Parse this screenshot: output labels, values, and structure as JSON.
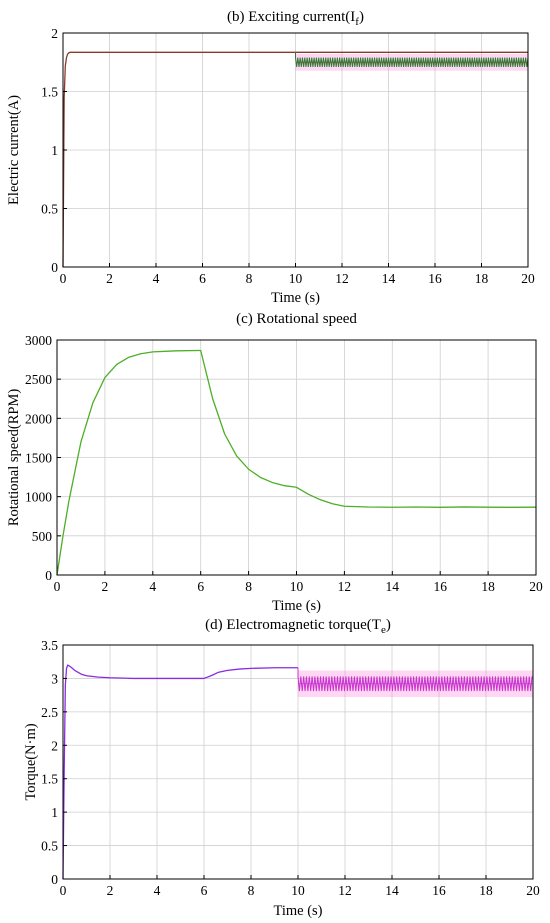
{
  "figure": {
    "background": "#ffffff",
    "grid_color": "#cfcfcf",
    "axis_color": "#000000"
  },
  "chart_data": [
    {
      "id": "exciting-current",
      "type": "line",
      "title": "(b) Exciting current(I",
      "title_sub": "f",
      "title_tail": ")",
      "xlabel": "Time (s)",
      "ylabel": "Electric current(A)",
      "xlim": [
        0,
        20
      ],
      "ylim": [
        0,
        2
      ],
      "xticks": [
        0,
        2,
        4,
        6,
        8,
        10,
        12,
        14,
        16,
        18,
        20
      ],
      "yticks": [
        0,
        0.5,
        1,
        1.5,
        2
      ],
      "ytick_labels": [
        "0",
        "0.5",
        "1",
        "1.5",
        "2"
      ],
      "grid": true,
      "series": [
        {
          "color": "#8b3a2a",
          "ripple_color": "#2e7d32",
          "ripple_band_color": "#ff8ce0",
          "x": [
            0,
            0.05,
            0.1,
            0.15,
            0.2,
            0.25,
            0.3,
            0.4,
            0.6,
            10,
            20
          ],
          "y": [
            0,
            1.45,
            1.72,
            1.79,
            1.82,
            1.83,
            1.835,
            1.835,
            1.835,
            1.835,
            1.835
          ],
          "ripple": {
            "from": 10,
            "to": 20,
            "mean": 1.75,
            "amplitude": 0.04,
            "period": 0.1
          }
        }
      ]
    },
    {
      "id": "rotational-speed",
      "type": "line",
      "title": "(c) Rotational speed",
      "xlabel": "Time (s)",
      "ylabel": "Rotational speed(RPM)",
      "xlim": [
        0,
        20
      ],
      "ylim": [
        0,
        3000
      ],
      "xticks": [
        0,
        2,
        4,
        6,
        8,
        10,
        12,
        14,
        16,
        18,
        20
      ],
      "yticks": [
        0,
        500,
        1000,
        1500,
        2000,
        2500,
        3000
      ],
      "ytick_labels": [
        "0",
        "500",
        "1000",
        "1500",
        "2000",
        "2500",
        "3000"
      ],
      "grid": true,
      "series": [
        {
          "color": "#4caf26",
          "x": [
            0,
            0.25,
            0.5,
            1,
            1.5,
            2,
            2.5,
            3,
            3.5,
            4,
            5,
            5.9,
            6,
            6.5,
            7,
            7.5,
            8,
            8.5,
            9,
            9.5,
            10,
            10.5,
            11,
            11.5,
            12,
            13,
            14,
            15,
            16,
            17,
            18,
            19,
            20
          ],
          "y": [
            0,
            500,
            950,
            1700,
            2200,
            2520,
            2690,
            2780,
            2825,
            2848,
            2862,
            2866,
            2866,
            2250,
            1800,
            1520,
            1350,
            1245,
            1180,
            1140,
            1120,
            1030,
            960,
            910,
            878,
            868,
            865,
            868,
            864,
            869,
            866,
            864,
            866
          ]
        }
      ]
    },
    {
      "id": "electromagnetic-torque",
      "type": "line",
      "title": "(d) Electromagnetic torque(T",
      "title_sub": "e",
      "title_tail": ")",
      "xlabel": "Time (s)",
      "ylabel": "Torque(N·m)",
      "xlim": [
        0,
        20
      ],
      "ylim": [
        0,
        3.5
      ],
      "xticks": [
        0,
        2,
        4,
        6,
        8,
        10,
        12,
        14,
        16,
        18,
        20
      ],
      "yticks": [
        0,
        0.5,
        1,
        1.5,
        2,
        2.5,
        3,
        3.5
      ],
      "ytick_labels": [
        "0",
        "0.5",
        "1",
        "1.5",
        "2",
        "2.5",
        "3",
        "3.5"
      ],
      "grid": true,
      "series": [
        {
          "color": "#8a2be2",
          "ripple_color": "#cc33cc",
          "ripple_band_color": "#ff8ce0",
          "x": [
            0,
            0.05,
            0.1,
            0.15,
            0.2,
            0.3,
            0.5,
            0.8,
            1,
            1.5,
            2,
            3,
            4,
            5,
            6,
            6.3,
            6.6,
            7,
            7.5,
            8,
            9,
            10
          ],
          "y": [
            0,
            1.6,
            2.9,
            3.15,
            3.2,
            3.18,
            3.12,
            3.06,
            3.04,
            3.02,
            3.01,
            3.0,
            3.0,
            3.0,
            3.0,
            3.04,
            3.09,
            3.12,
            3.14,
            3.15,
            3.16,
            3.16
          ],
          "ripple": {
            "from": 10,
            "to": 20,
            "mean": 2.92,
            "amplitude": 0.11,
            "period": 0.12
          }
        }
      ]
    }
  ]
}
